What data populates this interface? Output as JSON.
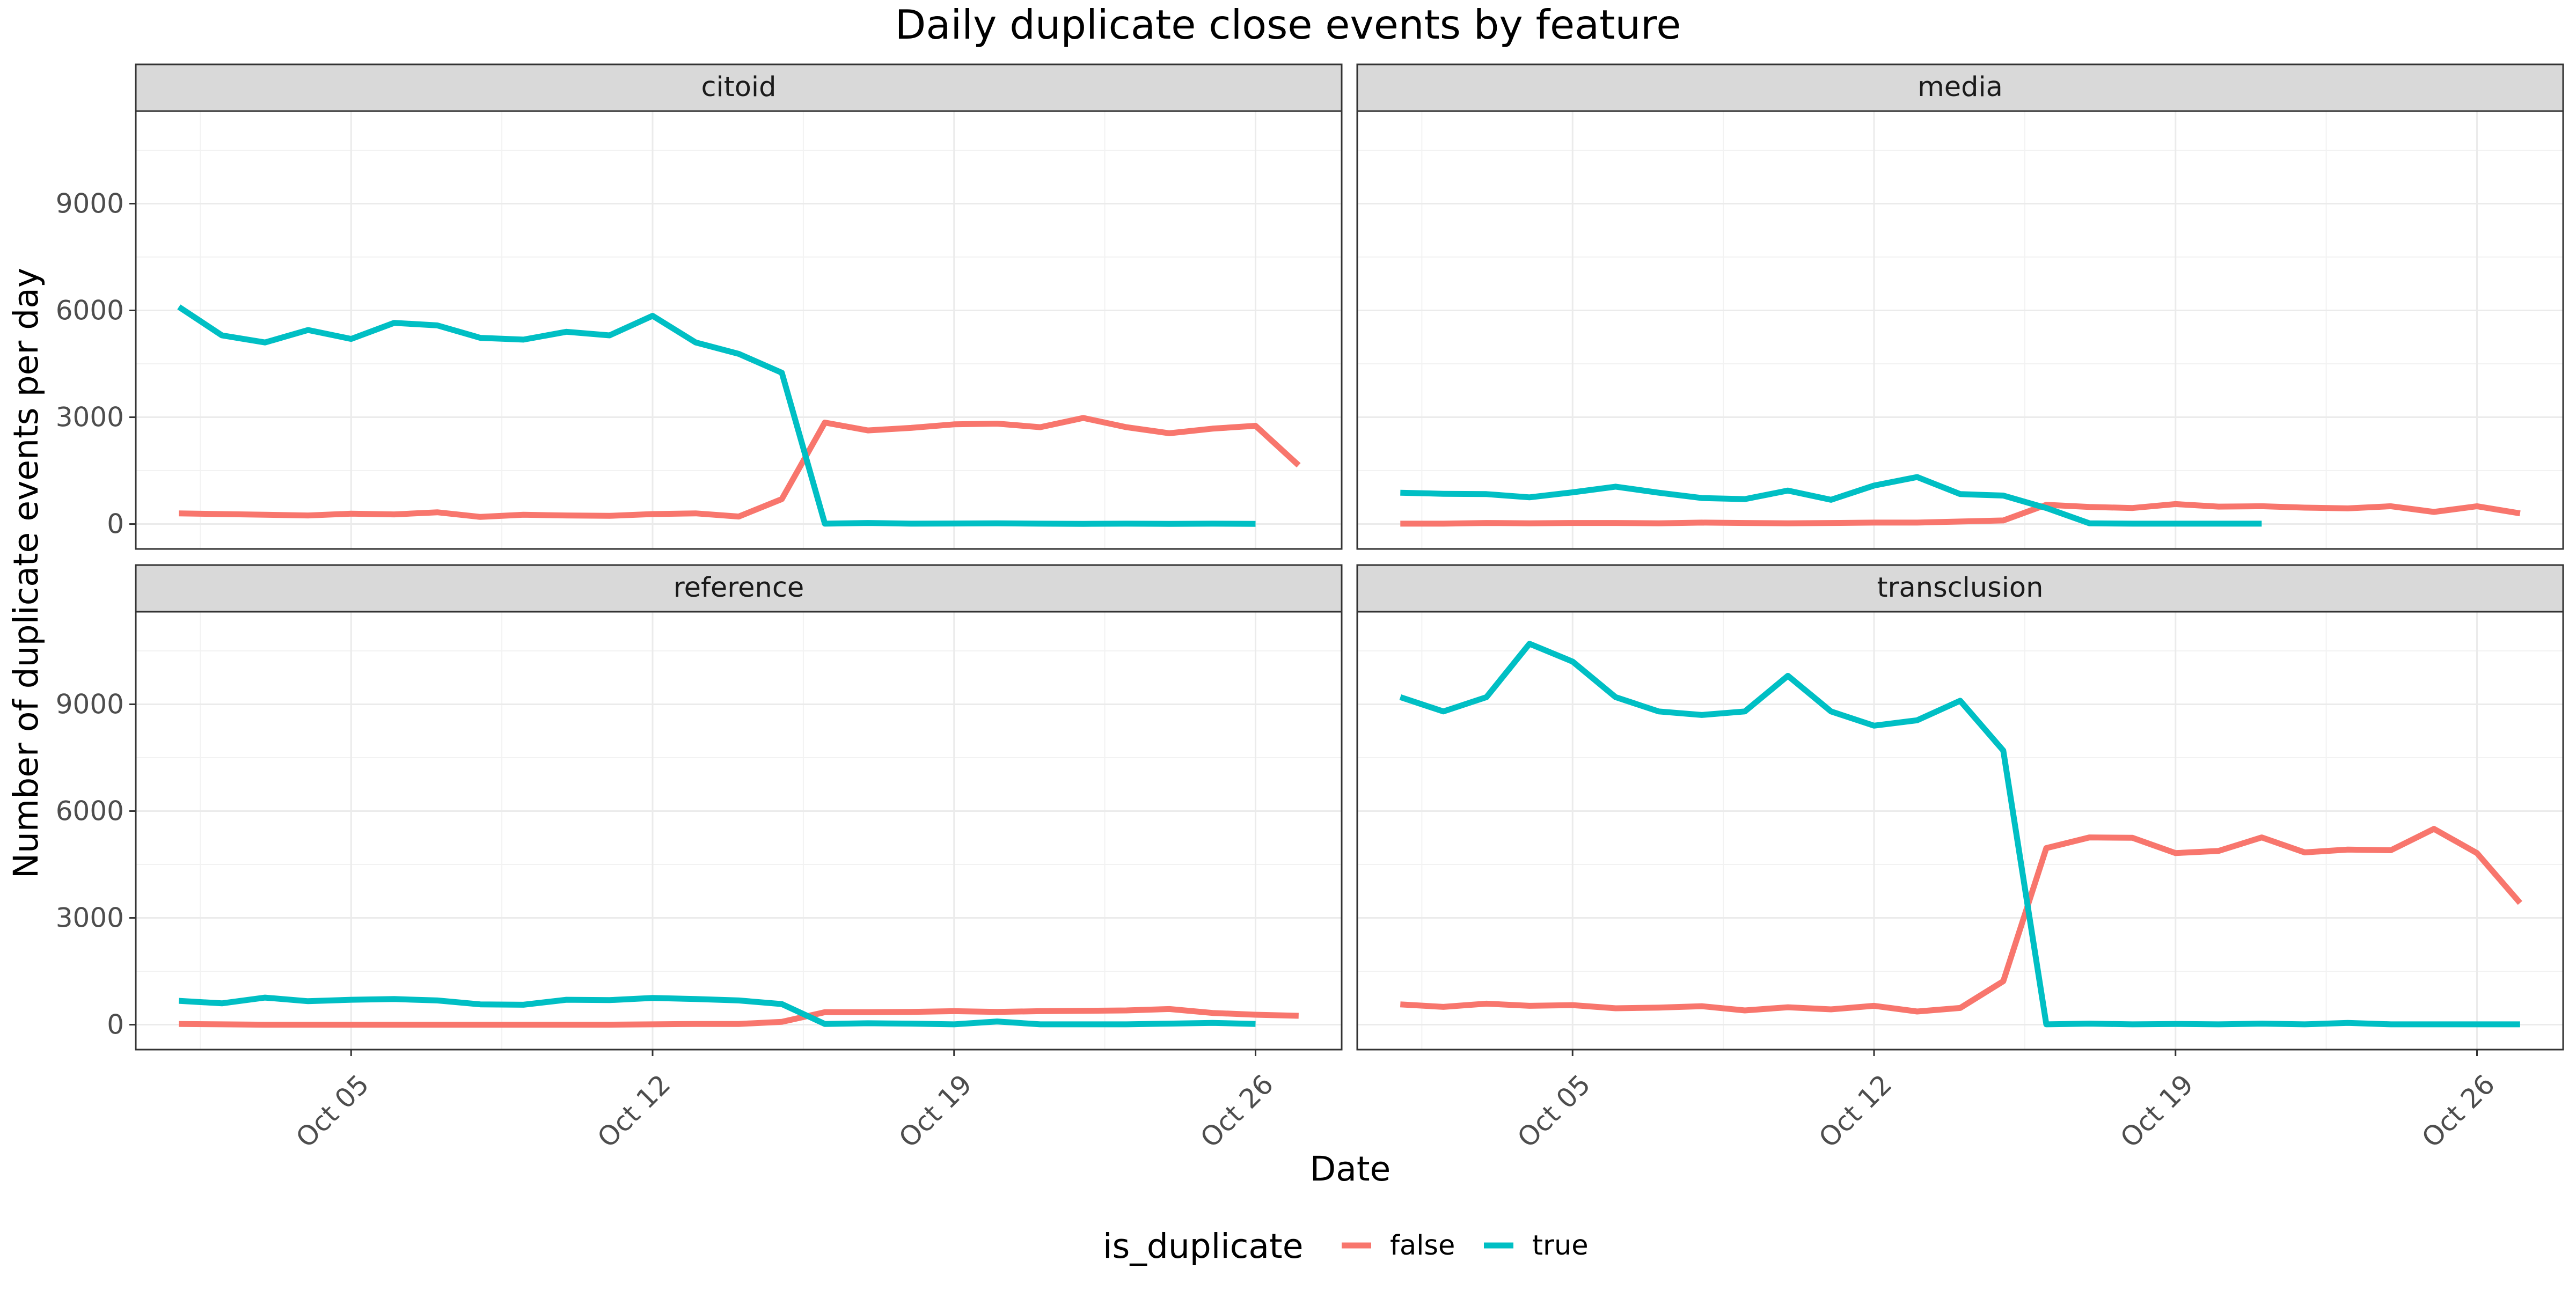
{
  "chart_data": {
    "type": "line",
    "title": "Daily duplicate close events by feature",
    "xlabel": "Date",
    "ylabel": "Number of duplicate events per day",
    "x_tick_labels": [
      "Oct 05",
      "Oct 12",
      "Oct 19",
      "Oct 26"
    ],
    "x_ticks": [
      "2019-10-05",
      "2019-10-12",
      "2019-10-19",
      "2019-10-26"
    ],
    "y_ticks": [
      0,
      3000,
      6000,
      9000
    ],
    "ylim": [
      -700,
      11600
    ],
    "xlim": [
      "2019-09-30",
      "2019-10-28"
    ],
    "grid": true,
    "legend": {
      "title": "is_duplicate",
      "position": "bottom",
      "entries": [
        {
          "label": "false",
          "color": "#F8766D"
        },
        {
          "label": "true",
          "color": "#00BFC4"
        }
      ]
    },
    "x": [
      "2019-10-01",
      "2019-10-02",
      "2019-10-03",
      "2019-10-04",
      "2019-10-05",
      "2019-10-06",
      "2019-10-07",
      "2019-10-08",
      "2019-10-09",
      "2019-10-10",
      "2019-10-11",
      "2019-10-12",
      "2019-10-13",
      "2019-10-14",
      "2019-10-15",
      "2019-10-16",
      "2019-10-17",
      "2019-10-18",
      "2019-10-19",
      "2019-10-20",
      "2019-10-21",
      "2019-10-22",
      "2019-10-23",
      "2019-10-24",
      "2019-10-25",
      "2019-10-26",
      "2019-10-27"
    ],
    "panels": [
      {
        "name": "citoid",
        "series": [
          {
            "name": "false",
            "color": "#F8766D",
            "values": [
              300,
              280,
              260,
              240,
              290,
              270,
              330,
              200,
              260,
              240,
              230,
              280,
              300,
              210,
              700,
              2850,
              2630,
              2700,
              2800,
              2820,
              2720,
              2980,
              2720,
              2550,
              2680,
              2760,
              1650
            ]
          },
          {
            "name": "true",
            "color": "#00BFC4",
            "values": [
              6100,
              5300,
              5100,
              5450,
              5200,
              5650,
              5580,
              5230,
              5180,
              5400,
              5300,
              5850,
              5100,
              4780,
              4250,
              10,
              30,
              10,
              15,
              20,
              10,
              5,
              10,
              5,
              10,
              5,
              null
            ]
          }
        ]
      },
      {
        "name": "media",
        "series": [
          {
            "name": "false",
            "color": "#F8766D",
            "values": [
              10,
              10,
              30,
              20,
              30,
              30,
              20,
              40,
              30,
              20,
              30,
              40,
              40,
              70,
              100,
              540,
              480,
              450,
              560,
              490,
              500,
              460,
              440,
              500,
              340,
              500,
              300
            ]
          },
          {
            "name": "true",
            "color": "#00BFC4",
            "values": [
              880,
              850,
              840,
              750,
              890,
              1050,
              880,
              730,
              700,
              940,
              680,
              1080,
              1320,
              840,
              800,
              450,
              20,
              10,
              10,
              10,
              10,
              null,
              null,
              null,
              null,
              null,
              null
            ]
          }
        ]
      },
      {
        "name": "reference",
        "series": [
          {
            "name": "false",
            "color": "#F8766D",
            "values": [
              20,
              10,
              0,
              0,
              0,
              0,
              0,
              0,
              0,
              0,
              0,
              10,
              20,
              20,
              80,
              350,
              350,
              360,
              380,
              360,
              380,
              390,
              400,
              440,
              330,
              280,
              250
            ]
          },
          {
            "name": "true",
            "color": "#00BFC4",
            "values": [
              670,
              600,
              760,
              660,
              700,
              720,
              680,
              570,
              560,
              700,
              690,
              750,
              720,
              680,
              580,
              20,
              40,
              30,
              10,
              90,
              10,
              10,
              10,
              30,
              50,
              20,
              null
            ]
          }
        ]
      },
      {
        "name": "transclusion",
        "series": [
          {
            "name": "false",
            "color": "#F8766D",
            "values": [
              570,
              500,
              590,
              530,
              550,
              460,
              480,
              520,
              400,
              490,
              430,
              530,
              370,
              470,
              1220,
              4960,
              5260,
              5250,
              4820,
              4880,
              5260,
              4840,
              4920,
              4900,
              5500,
              4820,
              3420
            ]
          },
          {
            "name": "true",
            "color": "#00BFC4",
            "values": [
              9200,
              8800,
              9200,
              10700,
              10200,
              9200,
              8800,
              8700,
              8800,
              9800,
              8800,
              8400,
              8550,
              9100,
              7700,
              10,
              30,
              10,
              20,
              10,
              30,
              10,
              50,
              10,
              10,
              10,
              10
            ]
          }
        ]
      }
    ]
  }
}
